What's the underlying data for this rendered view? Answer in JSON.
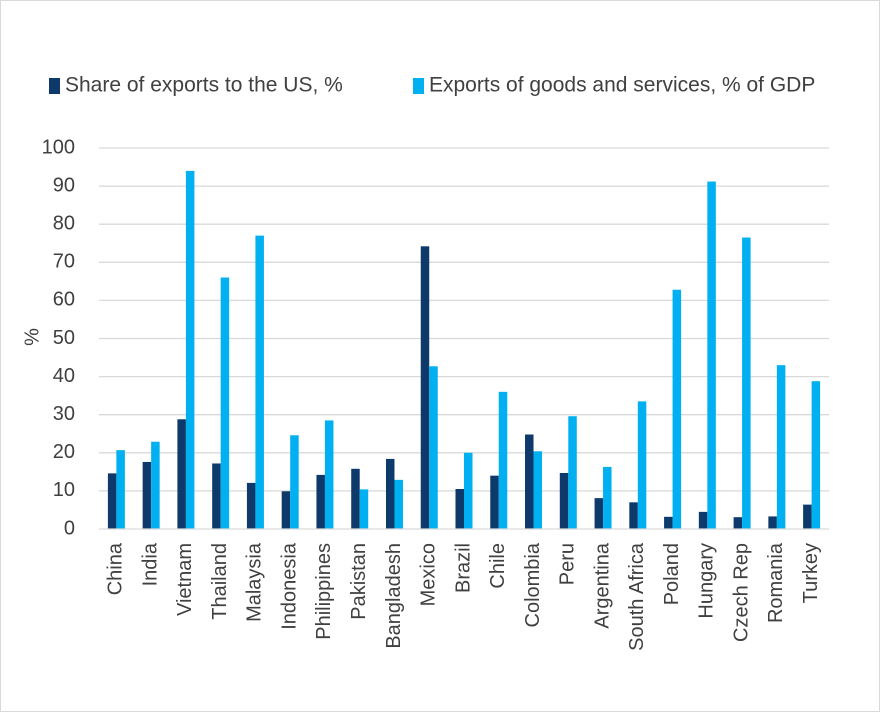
{
  "chart_data": {
    "type": "bar",
    "title": "",
    "xlabel": "",
    "ylabel": "%",
    "ylim": [
      0,
      100
    ],
    "yticks": [
      "0",
      "10",
      "20",
      "30",
      "40",
      "50",
      "60",
      "70",
      "80",
      "90",
      "100"
    ],
    "grid": true,
    "legend_position": "top",
    "categories": [
      "China",
      "India",
      "Vietnam",
      "Thailand",
      "Malaysia",
      "Indonesia",
      "Philippines",
      "Pakistan",
      "Bangladesh",
      "Mexico",
      "Brazil",
      "Chile",
      "Colombia",
      "Peru",
      "Argentina",
      "South Africa",
      "Poland",
      "Hungary",
      "Czech Rep",
      "Romania",
      "Turkey"
    ],
    "series": [
      {
        "name": "Share of exports to the US, %",
        "color": "#0d3a6b",
        "values": [
          14.6,
          17.6,
          28.8,
          17.2,
          12.1,
          9.9,
          14.2,
          15.8,
          18.4,
          74.2,
          10.5,
          14.0,
          24.8,
          14.7,
          8.1,
          7.0,
          3.2,
          4.5,
          3.1,
          3.3,
          6.4
        ]
      },
      {
        "name": "Exports of goods and services, % of GDP",
        "color": "#00b0f0",
        "values": [
          20.7,
          22.9,
          94.0,
          66.0,
          77.0,
          24.6,
          28.5,
          10.4,
          12.9,
          42.7,
          20.0,
          36.0,
          20.4,
          29.6,
          16.3,
          33.5,
          62.8,
          91.2,
          76.5,
          43.0,
          38.8
        ]
      }
    ]
  }
}
